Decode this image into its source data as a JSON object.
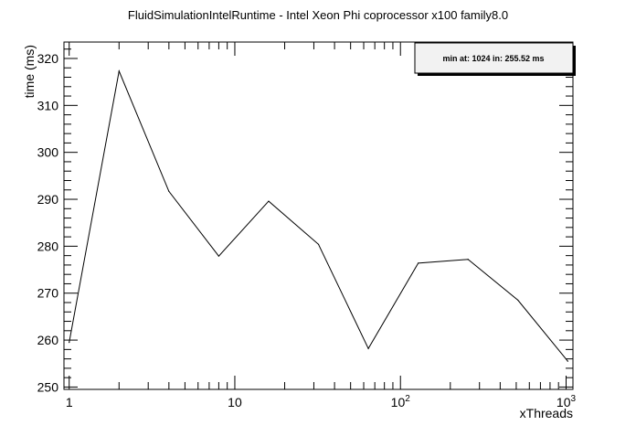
{
  "chart_data": {
    "type": "line",
    "title": "FluidSimulationIntelRuntime - Intel Xeon Phi coprocessor x100 family8.0",
    "xlabel": "xThreads",
    "ylabel": "time (ms)",
    "x_scale": "log",
    "xlim": [
      0.93,
      1100
    ],
    "ylim": [
      249.5,
      323.5
    ],
    "grid": false,
    "x_tick_labels": [
      {
        "value": 1,
        "base": "1",
        "exp": ""
      },
      {
        "value": 10,
        "base": "10",
        "exp": ""
      },
      {
        "value": 100,
        "base": "10",
        "exp": "2"
      },
      {
        "value": 1000,
        "base": "10",
        "exp": "3"
      }
    ],
    "y_ticks": [
      250,
      260,
      270,
      280,
      290,
      300,
      310,
      320
    ],
    "series": [
      {
        "x": [
          1,
          2,
          4,
          8,
          16,
          32,
          64,
          128,
          256,
          512,
          1024
        ],
        "y": [
          259.5,
          317.3,
          291.7,
          277.9,
          289.6,
          280.4,
          258.2,
          276.4,
          277.2,
          268.5,
          255.5
        ]
      }
    ],
    "legend": {
      "position": "top-right",
      "text": "min at: 1024 in: 255.52 ms"
    }
  }
}
